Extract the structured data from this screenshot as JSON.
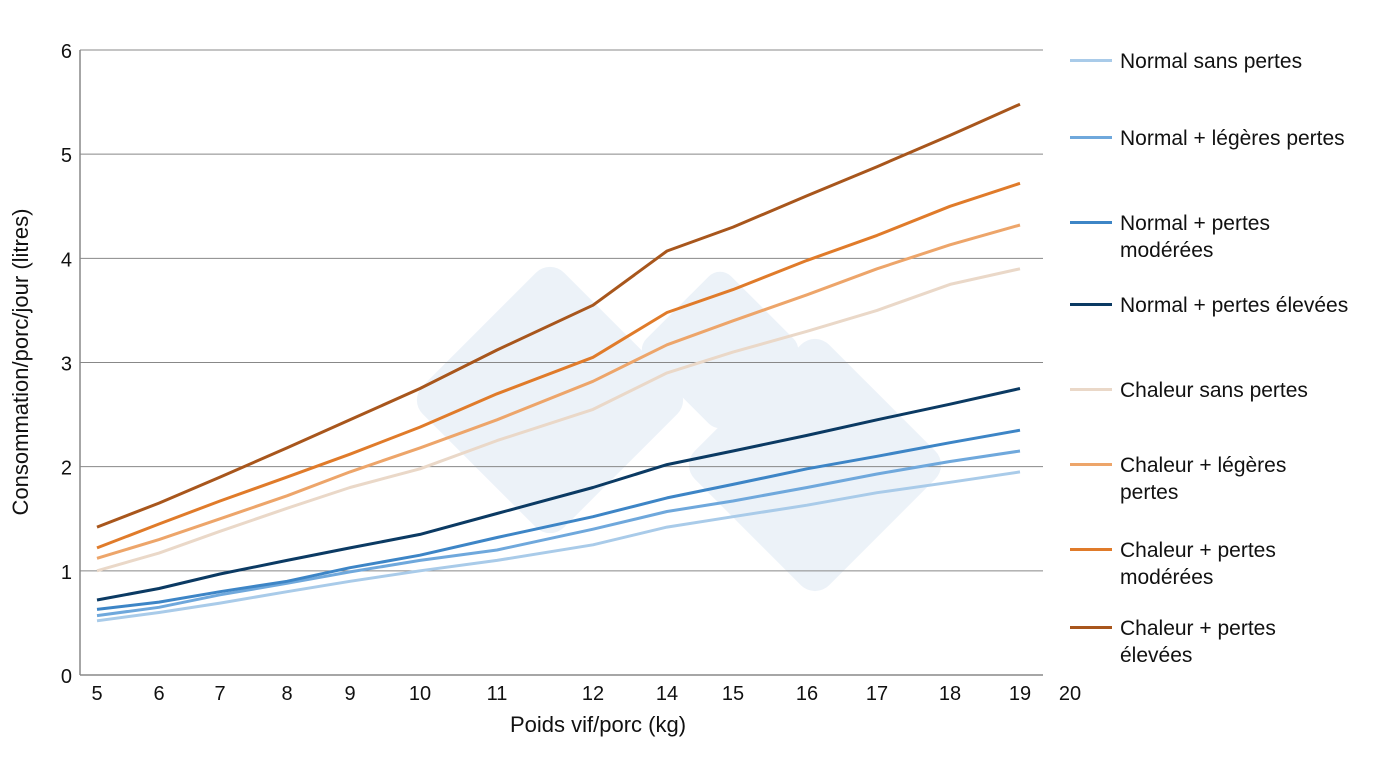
{
  "chart_data": {
    "type": "line",
    "xlabel": "Poids vif/porc (kg)",
    "ylabel": "Consommation/porc/jour (litres)",
    "categories": [
      "5",
      "6",
      "7",
      "8",
      "9",
      "10",
      "11",
      "12",
      "14",
      "15",
      "16",
      "17",
      "18",
      "19",
      "20"
    ],
    "y_ticks": [
      "0",
      "1",
      "2",
      "3",
      "4",
      "5",
      "6"
    ],
    "ylim": [
      0,
      6
    ],
    "grid": "horizontal",
    "legend_position": "right",
    "series": [
      {
        "name": "Normal sans pertes",
        "color": "#a9cbe9",
        "values": [
          0.52,
          0.6,
          0.69,
          0.8,
          0.9,
          1.0,
          1.1,
          1.25,
          1.42,
          1.52,
          1.63,
          1.75,
          1.85,
          1.95,
          null
        ]
      },
      {
        "name": "Normal + légères pertes",
        "color": "#6fa8dc",
        "values": [
          0.57,
          0.65,
          0.77,
          0.88,
          0.99,
          1.1,
          1.2,
          1.4,
          1.57,
          1.67,
          1.8,
          1.93,
          2.05,
          2.15,
          null
        ]
      },
      {
        "name": "Normal + pertes modérées",
        "color": "#3d85c6",
        "values": [
          0.63,
          0.7,
          0.8,
          0.9,
          1.03,
          1.15,
          1.32,
          1.52,
          1.7,
          1.83,
          1.98,
          2.1,
          2.23,
          2.35,
          null
        ]
      },
      {
        "name": "Normal + pertes élevées",
        "color": "#0b3a63",
        "values": [
          0.72,
          0.83,
          0.97,
          1.1,
          1.22,
          1.35,
          1.55,
          1.8,
          2.02,
          2.15,
          2.3,
          2.45,
          2.6,
          2.75,
          null
        ]
      },
      {
        "name": "Chaleur sans pertes",
        "color": "#ead8c8",
        "values": [
          1.0,
          1.17,
          1.38,
          1.6,
          1.8,
          1.98,
          2.25,
          2.55,
          2.9,
          3.1,
          3.3,
          3.5,
          3.75,
          3.9,
          null
        ]
      },
      {
        "name": "Chaleur + légères pertes",
        "color": "#eda56a",
        "values": [
          1.12,
          1.3,
          1.5,
          1.72,
          1.95,
          2.18,
          2.45,
          2.82,
          3.17,
          3.4,
          3.65,
          3.9,
          4.13,
          4.32,
          null
        ]
      },
      {
        "name": "Chaleur + pertes modérées",
        "color": "#e07b2a",
        "values": [
          1.22,
          1.45,
          1.67,
          1.9,
          2.12,
          2.38,
          2.7,
          3.05,
          3.48,
          3.7,
          3.98,
          4.22,
          4.5,
          4.72,
          null
        ]
      },
      {
        "name": "Chaleur + pertes élevées",
        "color": "#a8561c",
        "values": [
          1.42,
          1.65,
          1.9,
          2.18,
          2.45,
          2.75,
          3.12,
          3.55,
          4.07,
          4.3,
          4.6,
          4.88,
          5.18,
          5.48,
          null
        ]
      }
    ]
  }
}
